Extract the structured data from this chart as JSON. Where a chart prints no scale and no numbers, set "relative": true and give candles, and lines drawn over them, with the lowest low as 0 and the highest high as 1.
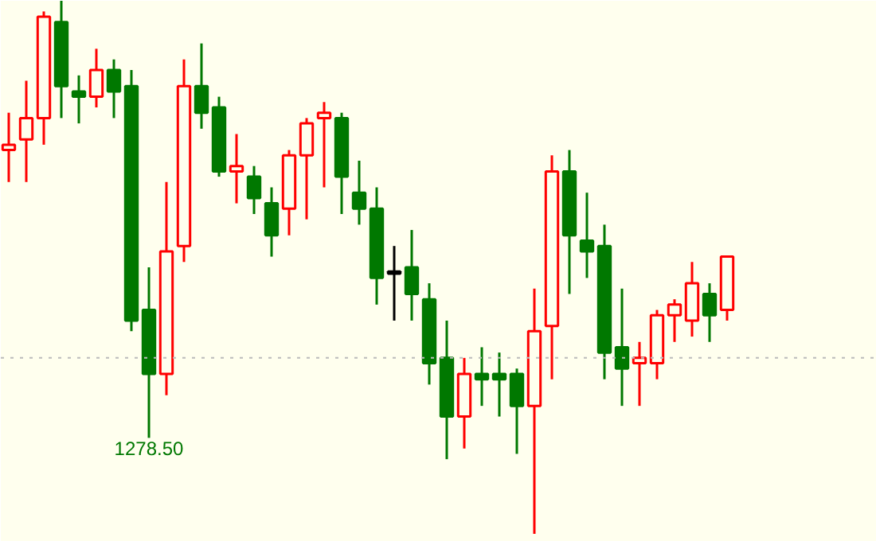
{
  "chart_data": {
    "type": "candlestick",
    "relative": true,
    "categories": [
      null,
      null,
      null,
      null,
      null,
      null,
      null,
      null,
      null,
      null,
      null,
      null,
      null,
      null,
      null,
      null,
      null,
      null,
      null,
      null,
      null,
      null,
      null,
      null,
      null,
      null,
      null,
      null,
      null,
      null,
      null,
      null,
      null,
      null,
      null,
      null,
      null,
      null,
      null,
      null,
      null,
      null
    ],
    "ohlc": [
      [
        0.72,
        0.79,
        0.66,
        0.73
      ],
      [
        0.74,
        0.85,
        0.66,
        0.78
      ],
      [
        0.78,
        0.98,
        0.73,
        0.97
      ],
      [
        0.96,
        1,
        0.78,
        0.84
      ],
      [
        0.83,
        0.86,
        0.77,
        0.82
      ],
      [
        0.82,
        0.91,
        0.8,
        0.87
      ],
      [
        0.87,
        0.89,
        0.78,
        0.83
      ],
      [
        0.84,
        0.87,
        0.38,
        0.4
      ],
      [
        0.42,
        0.5,
        0.18,
        0.3
      ],
      [
        0.3,
        0.66,
        0.26,
        0.53
      ],
      [
        0.54,
        0.89,
        0.51,
        0.84
      ],
      [
        0.84,
        0.92,
        0.76,
        0.79
      ],
      [
        0.8,
        0.82,
        0.67,
        0.68
      ],
      [
        0.68,
        0.75,
        0.62,
        0.69
      ],
      [
        0.67,
        0.69,
        0.6,
        0.63
      ],
      [
        0.62,
        0.65,
        0.52,
        0.56
      ],
      [
        0.61,
        0.72,
        0.56,
        0.71
      ],
      [
        0.71,
        0.78,
        0.59,
        0.77
      ],
      [
        0.78,
        0.81,
        0.65,
        0.79
      ],
      [
        0.78,
        0.79,
        0.6,
        0.67
      ],
      [
        0.64,
        0.7,
        0.58,
        0.61
      ],
      [
        0.61,
        0.65,
        0.43,
        0.48
      ],
      [
        0.49,
        0.54,
        0.4,
        0.49
      ],
      [
        0.5,
        0.57,
        0.4,
        0.45
      ],
      [
        0.44,
        0.47,
        0.28,
        0.32
      ],
      [
        0.33,
        0.4,
        0.14,
        0.22
      ],
      [
        0.22,
        0.33,
        0.16,
        0.3
      ],
      [
        0.3,
        0.35,
        0.24,
        0.29
      ],
      [
        0.3,
        0.34,
        0.22,
        0.29
      ],
      [
        0.3,
        0.31,
        0.15,
        0.24
      ],
      [
        0.24,
        0.46,
        0,
        0.38
      ],
      [
        0.39,
        0.71,
        0.29,
        0.68
      ],
      [
        0.68,
        0.72,
        0.45,
        0.56
      ],
      [
        0.55,
        0.64,
        0.48,
        0.53
      ],
      [
        0.54,
        0.58,
        0.29,
        0.34
      ],
      [
        0.35,
        0.46,
        0.24,
        0.31
      ],
      [
        0.32,
        0.36,
        0.24,
        0.33
      ],
      [
        0.32,
        0.42,
        0.29,
        0.41
      ],
      [
        0.41,
        0.44,
        0.36,
        0.43
      ],
      [
        0.4,
        0.51,
        0.37,
        0.47
      ],
      [
        0.45,
        0.47,
        0.36,
        0.41
      ],
      [
        0.42,
        0.52,
        0.4,
        0.52
      ]
    ],
    "colors": [
      "#ff0000",
      "#ff0000",
      "#ff0000",
      "#007800",
      "#007800",
      "#ff0000",
      "#007800",
      "#007800",
      "#007800",
      "#ff0000",
      "#ff0000",
      "#007800",
      "#007800",
      "#ff0000",
      "#007800",
      "#007800",
      "#ff0000",
      "#ff0000",
      "#ff0000",
      "#007800",
      "#007800",
      "#007800",
      "#000000",
      "#007800",
      "#007800",
      "#007800",
      "#ff0000",
      "#007800",
      "#007800",
      "#007800",
      "#ff0000",
      "#ff0000",
      "#007800",
      "#007800",
      "#007800",
      "#007800",
      "#ff0000",
      "#ff0000",
      "#ff0000",
      "#ff0000",
      "#007800",
      "#ff0000"
    ],
    "annotations": [
      {
        "text": "1278.50",
        "y": 0.18
      }
    ],
    "ref_lines": [
      {
        "axis": "y",
        "value": 0.33,
        "color": "#bbbbbb",
        "line_style": "dotted"
      }
    ],
    "tick_labels": false,
    "grid": false
  }
}
